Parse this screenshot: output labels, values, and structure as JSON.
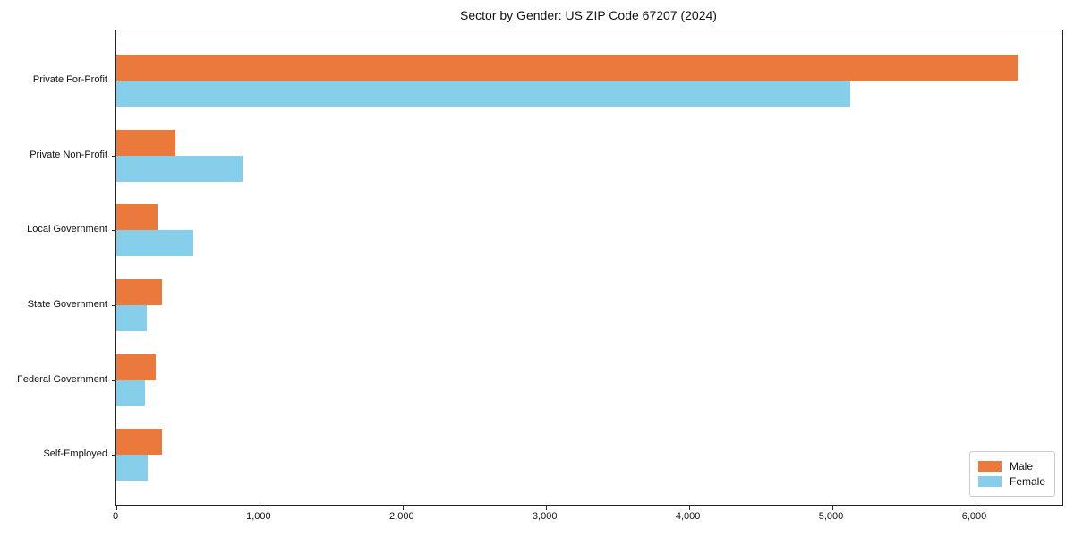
{
  "chart_data": {
    "type": "bar",
    "orientation": "horizontal",
    "title": "Sector by Gender: US ZIP Code 67207 (2024)",
    "categories": [
      "Private For-Profit",
      "Private Non-Profit",
      "Local Government",
      "State Government",
      "Federal Government",
      "Self-Employed"
    ],
    "series": [
      {
        "name": "Male",
        "color": "#EC793C",
        "values": [
          6300,
          410,
          285,
          320,
          275,
          320
        ]
      },
      {
        "name": "Female",
        "color": "#87CEEB",
        "values": [
          5130,
          880,
          535,
          210,
          200,
          220
        ]
      }
    ],
    "xlim": [
      0,
      6610
    ],
    "xticks": [
      {
        "value": 0,
        "label": "0"
      },
      {
        "value": 1000,
        "label": "1,000"
      },
      {
        "value": 2000,
        "label": "2,000"
      },
      {
        "value": 3000,
        "label": "3,000"
      },
      {
        "value": 4000,
        "label": "4,000"
      },
      {
        "value": 5000,
        "label": "5,000"
      },
      {
        "value": 6000,
        "label": "6,000"
      }
    ],
    "xlabel": "",
    "ylabel": "",
    "grid": false,
    "legend": {
      "position": "lower-right",
      "entries": [
        "Male",
        "Female"
      ]
    }
  },
  "colors": {
    "background": "#ffffff",
    "axis": "#262626",
    "legend_border": "#cccccc",
    "male": "#EC793C",
    "female": "#87CEEB"
  }
}
